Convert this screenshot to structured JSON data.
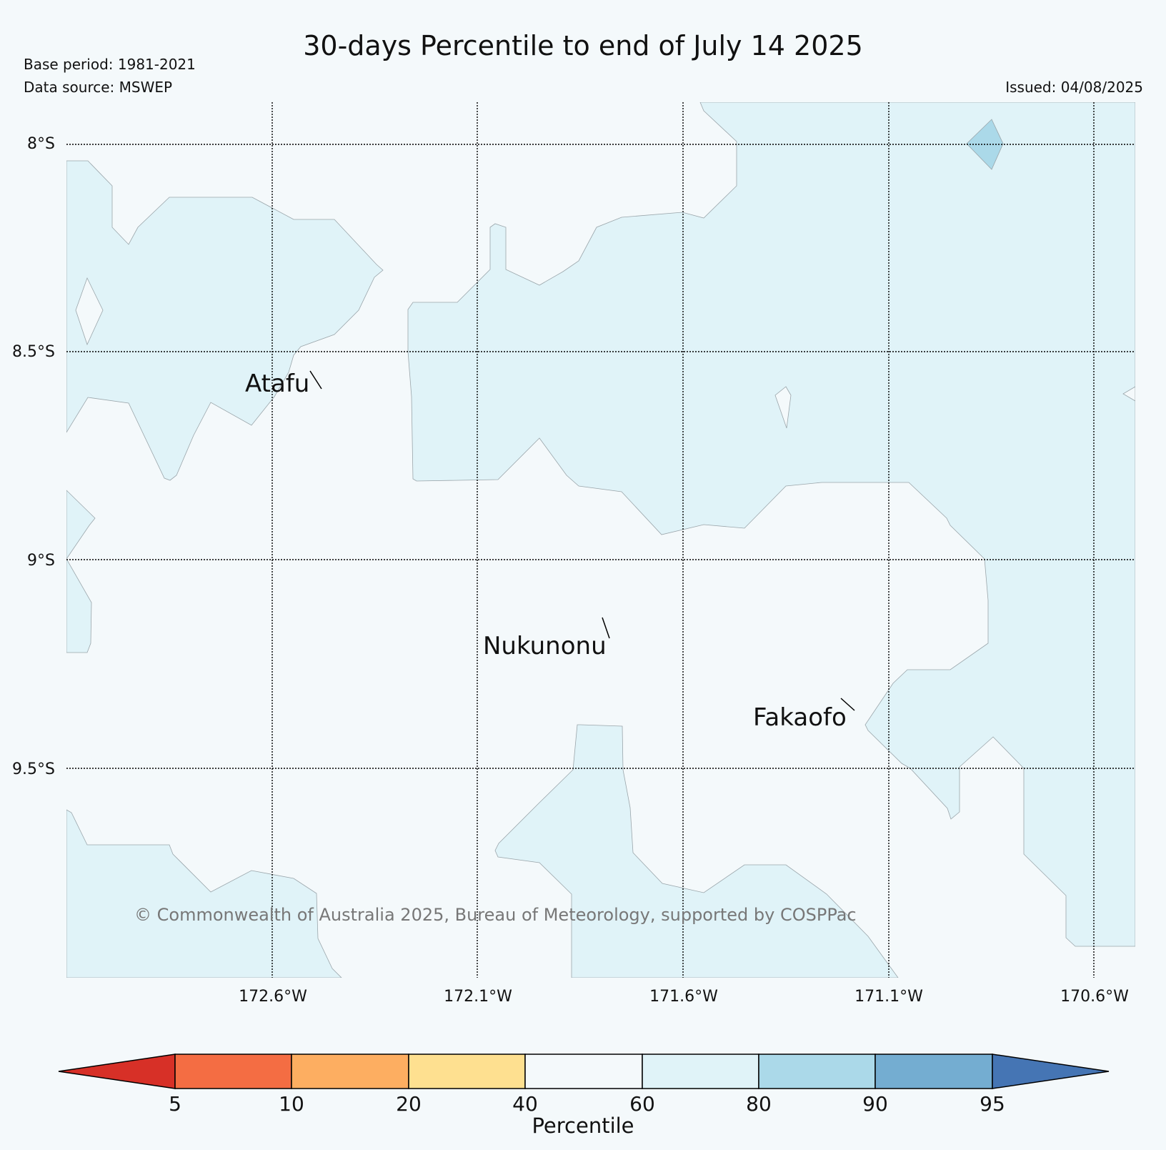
{
  "header": {
    "title": "30-days Percentile to end of July 14 2025",
    "base_period": "Base period: 1981-2021",
    "data_source": "Data source: MSWEP",
    "issued": "Issued: 04/08/2025"
  },
  "map": {
    "lat_labels": [
      "8°S",
      "8.5°S",
      "9°S",
      "9.5°S"
    ],
    "lon_labels": [
      "172.6°W",
      "172.1°W",
      "171.6°W",
      "171.1°W",
      "170.6°W"
    ],
    "places": [
      "Atafu",
      "Nukunonu",
      "Fakaofo"
    ],
    "copyright": "© Commonwealth of Australia 2025, Bureau of Meteorology, supported by COSPPac",
    "colors": {
      "ocean_background": "#f4f9fb",
      "band_60_80": "#e0f3f8",
      "band_80_90": "#abd9e9"
    }
  },
  "colorbar": {
    "label": "Percentile",
    "ticks": [
      "5",
      "10",
      "20",
      "40",
      "60",
      "80",
      "90",
      "95"
    ],
    "colors": [
      "#d73027",
      "#f46d43",
      "#fdae61",
      "#fee090",
      "#f4f9fb",
      "#e0f3f8",
      "#abd9e9",
      "#74add1",
      "#4575b4"
    ]
  }
}
